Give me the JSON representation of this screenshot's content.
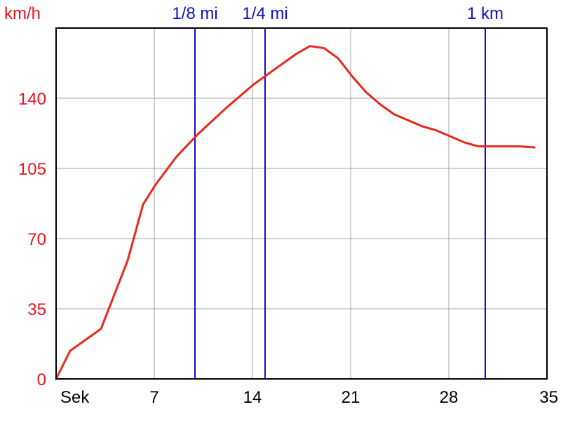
{
  "chart_data": {
    "type": "line",
    "ylabel": "km/h",
    "xlabel": "Sek",
    "xlim": [
      0,
      35
    ],
    "ylim": [
      0,
      175
    ],
    "x_ticks": [
      7,
      14,
      21,
      28,
      35
    ],
    "y_ticks": [
      0,
      35,
      70,
      105,
      140
    ],
    "grid": true,
    "colors": {
      "series": "#e8281c",
      "markers": "#1010c8",
      "y_ticks": "#e8141c",
      "grid": "#a0a0a0",
      "frame": "#000000"
    },
    "markers": [
      {
        "label": "1/8 mi",
        "x": 9.9
      },
      {
        "label": "1/4 mi",
        "x": 14.9
      },
      {
        "label": "1 km",
        "x": 30.6
      }
    ],
    "series": [
      {
        "x": [
          0,
          1.0,
          3.2,
          5.1,
          6.2,
          7.1,
          8.6,
          10.1,
          12.1,
          14.1,
          15.1,
          17.1,
          18.1,
          19.1,
          20.1,
          21.1,
          22.1,
          23.1,
          24.1,
          26.1,
          27.1,
          29.1,
          30.1,
          31.1,
          32.1,
          33.1,
          34.1
        ],
        "y": [
          0,
          14,
          25,
          59,
          87,
          97,
          111,
          122,
          135,
          147,
          152,
          162,
          166,
          165,
          160,
          151,
          143,
          137,
          132,
          126,
          124,
          118,
          116,
          116,
          116,
          116,
          115.5
        ]
      }
    ]
  }
}
